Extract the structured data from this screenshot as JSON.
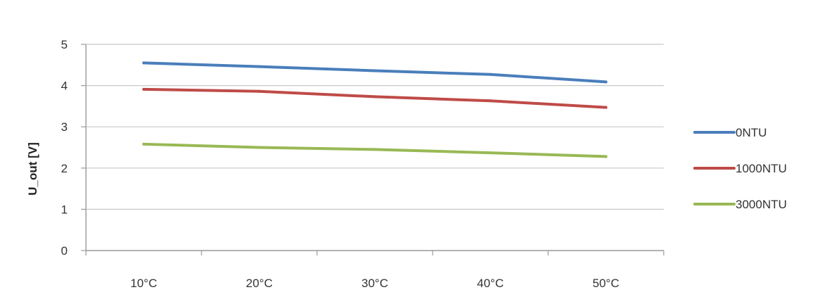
{
  "chart_data": {
    "type": "line",
    "title": "",
    "xlabel": "",
    "ylabel": "U_out [V]",
    "categories": [
      "10°C",
      "20°C",
      "30°C",
      "40°C",
      "50°C"
    ],
    "ylim": [
      0,
      5
    ],
    "yticks": [
      0,
      1,
      2,
      3,
      4,
      5
    ],
    "grid": true,
    "legend_position": "right",
    "series": [
      {
        "name": "0NTU",
        "color": "#4a7ebb",
        "values": [
          4.55,
          4.46,
          4.36,
          4.27,
          4.09
        ]
      },
      {
        "name": "1000NTU",
        "color": "#be4b48",
        "values": [
          3.91,
          3.86,
          3.73,
          3.63,
          3.47
        ]
      },
      {
        "name": "3000NTU",
        "color": "#98b954",
        "values": [
          2.58,
          2.5,
          2.45,
          2.37,
          2.28
        ]
      }
    ]
  }
}
